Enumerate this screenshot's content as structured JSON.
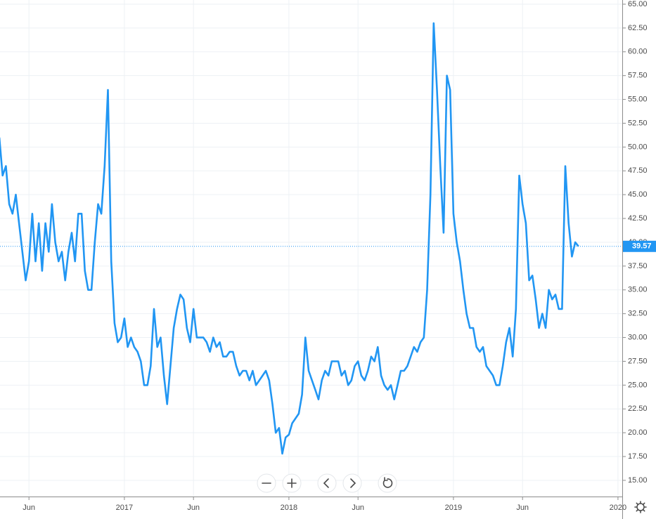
{
  "chart_data": {
    "type": "line",
    "x": [
      2016.24,
      2016.26,
      2016.28,
      2016.3,
      2016.32,
      2016.34,
      2016.36,
      2016.38,
      2016.4,
      2016.42,
      2016.44,
      2016.46,
      2016.48,
      2016.5,
      2016.52,
      2016.54,
      2016.56,
      2016.58,
      2016.6,
      2016.62,
      2016.64,
      2016.66,
      2016.68,
      2016.7,
      2016.72,
      2016.74,
      2016.76,
      2016.78,
      2016.8,
      2016.82,
      2016.84,
      2016.86,
      2016.88,
      2016.9,
      2016.92,
      2016.94,
      2016.96,
      2016.98,
      2017.0,
      2017.02,
      2017.04,
      2017.06,
      2017.08,
      2017.1,
      2017.12,
      2017.14,
      2017.16,
      2017.18,
      2017.2,
      2017.22,
      2017.24,
      2017.26,
      2017.28,
      2017.3,
      2017.32,
      2017.34,
      2017.36,
      2017.38,
      2017.4,
      2017.42,
      2017.44,
      2017.46,
      2017.48,
      2017.5,
      2017.52,
      2017.54,
      2017.56,
      2017.58,
      2017.6,
      2017.62,
      2017.64,
      2017.66,
      2017.68,
      2017.7,
      2017.72,
      2017.74,
      2017.76,
      2017.78,
      2017.8,
      2017.82,
      2017.84,
      2017.86,
      2017.88,
      2017.9,
      2017.92,
      2017.94,
      2017.96,
      2017.98,
      2018.0,
      2018.02,
      2018.04,
      2018.06,
      2018.08,
      2018.1,
      2018.12,
      2018.14,
      2018.16,
      2018.18,
      2018.2,
      2018.22,
      2018.24,
      2018.26,
      2018.28,
      2018.3,
      2018.32,
      2018.34,
      2018.36,
      2018.38,
      2018.4,
      2018.42,
      2018.44,
      2018.46,
      2018.48,
      2018.5,
      2018.52,
      2018.54,
      2018.56,
      2018.58,
      2018.6,
      2018.62,
      2018.64,
      2018.66,
      2018.68,
      2018.7,
      2018.72,
      2018.74,
      2018.76,
      2018.78,
      2018.8,
      2018.82,
      2018.84,
      2018.86,
      2018.88,
      2018.9,
      2018.92,
      2018.94,
      2018.96,
      2018.98,
      2019.0,
      2019.02,
      2019.04,
      2019.06,
      2019.08,
      2019.1,
      2019.12,
      2019.14,
      2019.16,
      2019.18,
      2019.2,
      2019.22,
      2019.24,
      2019.26,
      2019.28,
      2019.3,
      2019.32,
      2019.34,
      2019.36,
      2019.38,
      2019.4,
      2019.42,
      2019.44,
      2019.46,
      2019.48,
      2019.5,
      2019.52,
      2019.54,
      2019.56,
      2019.58,
      2019.6,
      2019.62,
      2019.64,
      2019.66,
      2019.68,
      2019.7,
      2019.72,
      2019.74,
      2019.76
    ],
    "series": [
      {
        "color": "#2196f3",
        "values": [
          51,
          47,
          48,
          44,
          43,
          45,
          42,
          39,
          36,
          38,
          43,
          38,
          42,
          37,
          42,
          39,
          44,
          40,
          38,
          39,
          36,
          39,
          41,
          38,
          43,
          43,
          37,
          35,
          35,
          40,
          44,
          43,
          48,
          56,
          38,
          31.5,
          29.5,
          30,
          32,
          29,
          30,
          29,
          28.5,
          27.5,
          25,
          25,
          27,
          33,
          29,
          30,
          26,
          23,
          27,
          31,
          33,
          34.5,
          34,
          31,
          29.5,
          33,
          30,
          30,
          30,
          29.5,
          28.5,
          30,
          29,
          29.5,
          28,
          28,
          28.5,
          28.5,
          27,
          26,
          26.5,
          26.5,
          25.5,
          26.5,
          25,
          25.5,
          26,
          26.5,
          25.5,
          23,
          20,
          20.5,
          17.8,
          19.5,
          19.8,
          21,
          21.5,
          22,
          24,
          30,
          26.5,
          25.5,
          24.5,
          23.5,
          25.5,
          26.5,
          26,
          27.5,
          27.5,
          27.5,
          26,
          26.5,
          25,
          25.5,
          27,
          27.5,
          26,
          25.5,
          26.5,
          28,
          27.5,
          29,
          26,
          25,
          24.5,
          25,
          23.5,
          25,
          26.5,
          26.5,
          27,
          28,
          29,
          28.5,
          29.5,
          30,
          35,
          45,
          63,
          56,
          48,
          41,
          57.5,
          56,
          43,
          40,
          38,
          35,
          32.5,
          31,
          31,
          29,
          28.5,
          29,
          27,
          26.5,
          26,
          25,
          25,
          27,
          29.5,
          31,
          28,
          33,
          47,
          44,
          42,
          36,
          36.5,
          34,
          31,
          32.5,
          31,
          35,
          34,
          34.5,
          33,
          33,
          48,
          42,
          38.5,
          40,
          39.57
        ]
      }
    ],
    "xlim": [
      2016.244,
      2020.026
    ],
    "xticks": [
      {
        "value": 2016.42,
        "label": "Jun"
      },
      2017,
      {
        "value": 2017.42,
        "label": "Jun"
      },
      2018,
      {
        "value": 2018.42,
        "label": "Jun"
      },
      2019,
      {
        "value": 2019.42,
        "label": "Jun"
      },
      2020
    ],
    "ylim": [
      13.3,
      65.44
    ],
    "yticks": [
      {
        "value": 15,
        "label": "15.00"
      },
      {
        "value": 17.5,
        "label": "17.50"
      },
      {
        "value": 20,
        "label": "20.00"
      },
      {
        "value": 22.5,
        "label": "22.50"
      },
      {
        "value": 25,
        "label": "25.00"
      },
      {
        "value": 27.5,
        "label": "27.50"
      },
      {
        "value": 30,
        "label": "30.00"
      },
      {
        "value": 32.5,
        "label": "32.50"
      },
      {
        "value": 35,
        "label": "35.00"
      },
      {
        "value": 37.5,
        "label": "37.50"
      },
      {
        "value": 40,
        "label": "40.00"
      },
      {
        "value": 42.5,
        "label": "42.50"
      },
      {
        "value": 45,
        "label": "45.00"
      },
      {
        "value": 47.5,
        "label": "47.50"
      },
      {
        "value": 50,
        "label": "50.00"
      },
      {
        "value": 52.5,
        "label": "52.50"
      },
      {
        "value": 55,
        "label": "55.00"
      },
      {
        "value": 57.5,
        "label": "57.50"
      },
      {
        "value": 60,
        "label": "60.00"
      },
      {
        "value": 62.5,
        "label": "62.50"
      },
      {
        "value": 65,
        "label": "65.00"
      }
    ],
    "grid": true
  }
}
